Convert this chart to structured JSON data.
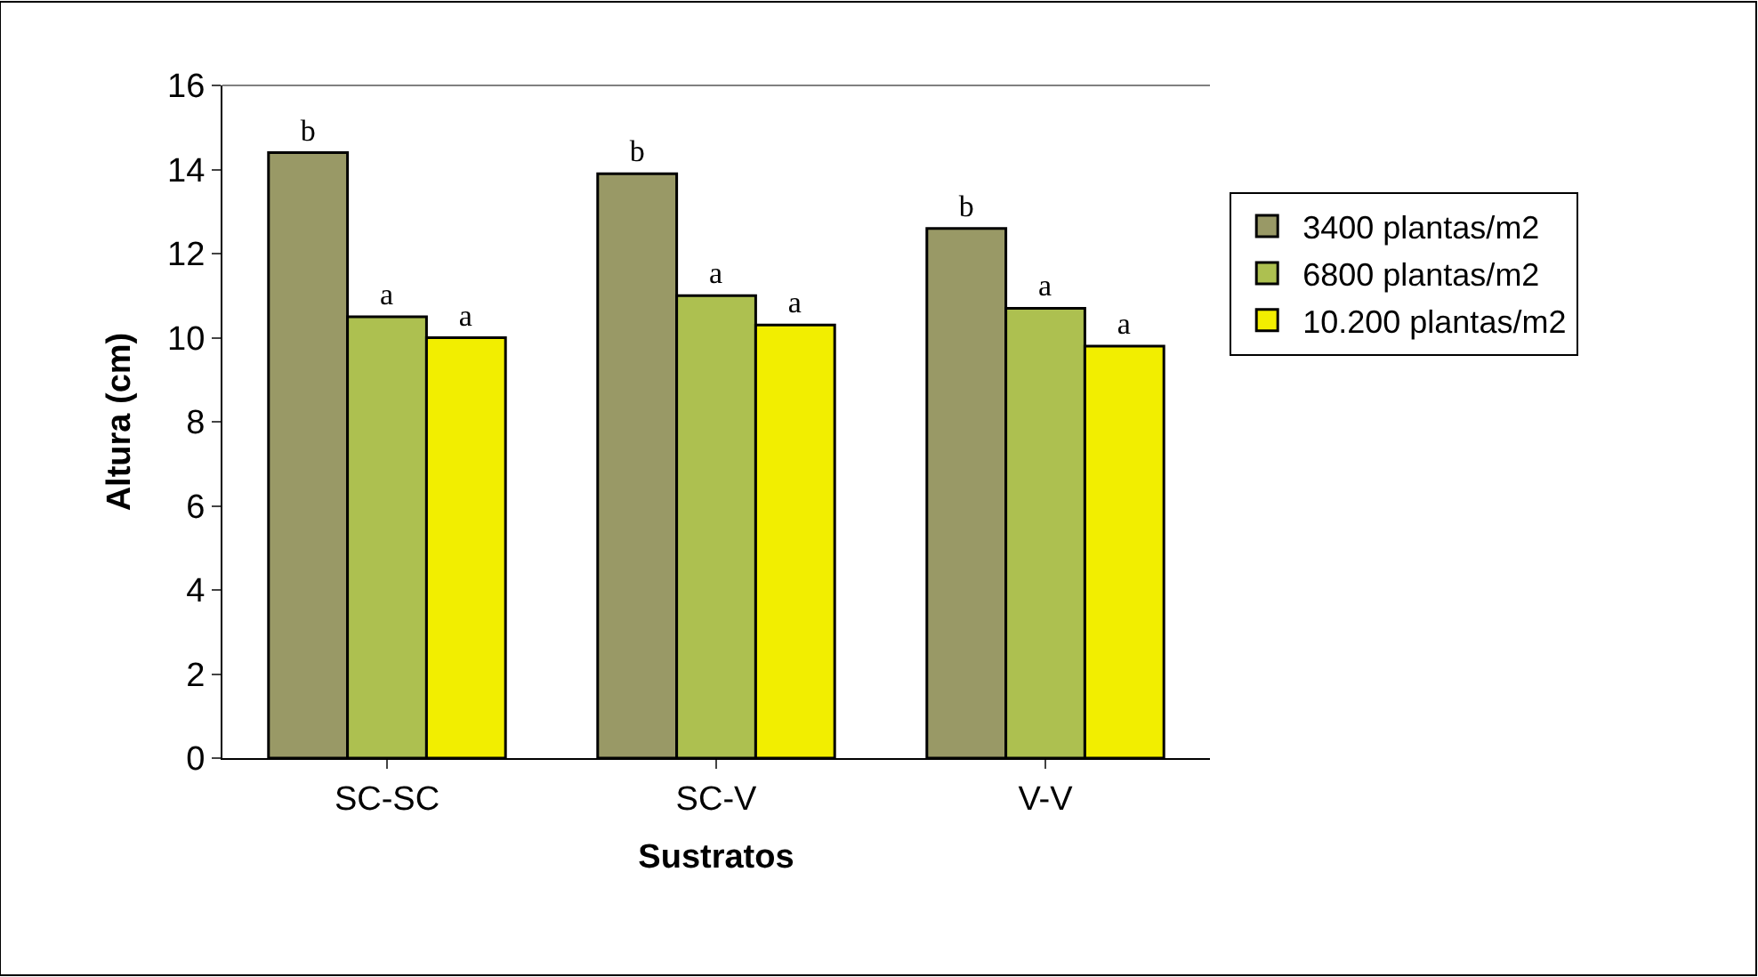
{
  "chart_data": {
    "type": "bar",
    "xlabel": "Sustratos",
    "ylabel": "Altura (cm)",
    "categories": [
      "SC-SC",
      "SC-V",
      "V-V"
    ],
    "series": [
      {
        "name": "3400 plantas/m2",
        "color": "#999966",
        "values": [
          14.4,
          13.9,
          12.6
        ],
        "value_labels": [
          "b",
          "b",
          "b"
        ]
      },
      {
        "name": "6800 plantas/m2",
        "color": "#adc050",
        "values": [
          10.5,
          11.0,
          10.7
        ],
        "value_labels": [
          "a",
          "a",
          "a"
        ]
      },
      {
        "name": "10.200 plantas/m2",
        "color": "#f2ee00",
        "values": [
          10.0,
          10.3,
          9.8
        ],
        "value_labels": [
          "a",
          "a",
          "a"
        ]
      }
    ],
    "ylim": [
      0,
      16
    ],
    "yticks": [
      0,
      2,
      4,
      6,
      8,
      10,
      12,
      14,
      16
    ],
    "legend": "right"
  }
}
